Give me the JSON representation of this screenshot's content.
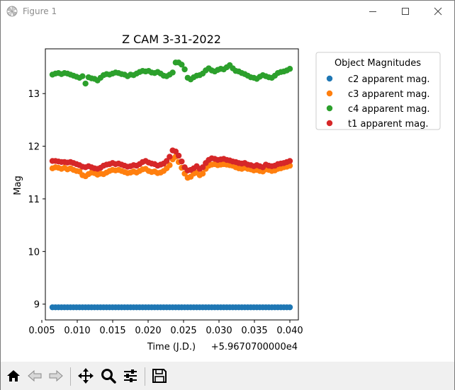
{
  "window": {
    "title": "Figure 1"
  },
  "chart_data": {
    "type": "scatter",
    "title": "Z CAM 3-31-2022",
    "xlabel": "Time (J.D.)",
    "ylabel": "Mag",
    "x_offset_label": "+5.9670700000e4",
    "xlim": [
      0.0055,
      0.0412
    ],
    "ylim": [
      8.7,
      13.85
    ],
    "x_ticks": [
      0.005,
      0.01,
      0.015,
      0.02,
      0.025,
      0.03,
      0.035,
      0.04
    ],
    "x_tick_labels": [
      "0.005",
      "0.010",
      "0.015",
      "0.020",
      "0.025",
      "0.030",
      "0.035",
      "0.040"
    ],
    "y_ticks": [
      9,
      10,
      11,
      12,
      13
    ],
    "y_tick_labels": [
      "9",
      "10",
      "11",
      "12",
      "13"
    ],
    "grid": false,
    "legend": {
      "title": "Object Magnitudes",
      "position": "outside-right-top"
    },
    "x_range": [
      0.0065,
      0.04
    ],
    "series": [
      {
        "name": "c2 apparent mag.",
        "color": "#1f77b4",
        "values": [
          8.94,
          8.94,
          8.94,
          8.94,
          8.94,
          8.94,
          8.94,
          8.94,
          8.94,
          8.94,
          8.94,
          8.94,
          8.94,
          8.94,
          8.94,
          8.94,
          8.94,
          8.94,
          8.94,
          8.94,
          8.94,
          8.94,
          8.94,
          8.94,
          8.94,
          8.94,
          8.94,
          8.94,
          8.94,
          8.94,
          8.94,
          8.94,
          8.94,
          8.94,
          8.94,
          8.94,
          8.94,
          8.94,
          8.94,
          8.94,
          8.94,
          8.94,
          8.94,
          8.94,
          8.94,
          8.94,
          8.94,
          8.94,
          8.94,
          8.94,
          8.94,
          8.94,
          8.94,
          8.94,
          8.94,
          8.94,
          8.94,
          8.94,
          8.94,
          8.94,
          8.94,
          8.94,
          8.94,
          8.94,
          8.94,
          8.94,
          8.94,
          8.94,
          8.94,
          8.94,
          8.94,
          8.94,
          8.94,
          8.94,
          8.94,
          8.94,
          8.94,
          8.94,
          8.94,
          8.94
        ]
      },
      {
        "name": "c3 apparent mag.",
        "color": "#ff7f0e",
        "values": [
          11.58,
          11.6,
          11.59,
          11.57,
          11.59,
          11.56,
          11.58,
          11.55,
          11.53,
          11.52,
          11.45,
          11.43,
          11.47,
          11.5,
          11.49,
          11.46,
          11.48,
          11.47,
          11.5,
          11.53,
          11.55,
          11.54,
          11.55,
          11.53,
          11.51,
          11.49,
          11.5,
          11.52,
          11.5,
          11.53,
          11.56,
          11.57,
          11.53,
          11.51,
          11.52,
          11.49,
          11.5,
          11.53,
          11.58,
          11.64,
          11.75,
          11.8,
          11.7,
          11.59,
          11.48,
          11.4,
          11.42,
          11.48,
          11.5,
          11.45,
          11.48,
          11.57,
          11.63,
          11.65,
          11.66,
          11.64,
          11.65,
          11.66,
          11.65,
          11.64,
          11.63,
          11.6,
          11.58,
          11.57,
          11.59,
          11.57,
          11.56,
          11.54,
          11.55,
          11.53,
          11.52,
          11.56,
          11.55,
          11.53,
          11.54,
          11.57,
          11.58,
          11.6,
          11.61,
          11.63
        ]
      },
      {
        "name": "c4 apparent mag.",
        "color": "#2ca02c",
        "values": [
          13.36,
          13.38,
          13.39,
          13.37,
          13.39,
          13.38,
          13.36,
          13.34,
          13.32,
          13.3,
          13.33,
          13.19,
          13.31,
          13.29,
          13.28,
          13.25,
          13.3,
          13.35,
          13.37,
          13.36,
          13.38,
          13.4,
          13.39,
          13.37,
          13.36,
          13.33,
          13.36,
          13.35,
          13.38,
          13.41,
          13.43,
          13.42,
          13.43,
          13.4,
          13.39,
          13.41,
          13.38,
          13.34,
          13.33,
          13.36,
          13.4,
          13.59,
          13.59,
          13.55,
          13.46,
          13.3,
          13.27,
          13.31,
          13.34,
          13.35,
          13.38,
          13.44,
          13.48,
          13.44,
          13.42,
          13.45,
          13.47,
          13.46,
          13.5,
          13.54,
          13.48,
          13.43,
          13.42,
          13.39,
          13.37,
          13.34,
          13.31,
          13.3,
          13.28,
          13.32,
          13.35,
          13.33,
          13.31,
          13.3,
          13.34,
          13.39,
          13.41,
          13.42,
          13.44,
          13.47
        ]
      },
      {
        "name": "t1 apparent mag.",
        "color": "#d62728",
        "values": [
          11.72,
          11.72,
          11.71,
          11.7,
          11.7,
          11.69,
          11.7,
          11.68,
          11.66,
          11.64,
          11.61,
          11.6,
          11.62,
          11.6,
          11.58,
          11.57,
          11.59,
          11.63,
          11.65,
          11.66,
          11.68,
          11.66,
          11.67,
          11.65,
          11.63,
          11.61,
          11.62,
          11.64,
          11.63,
          11.66,
          11.7,
          11.72,
          11.69,
          11.67,
          11.66,
          11.63,
          11.65,
          11.67,
          11.72,
          11.8,
          11.92,
          11.9,
          11.82,
          11.71,
          11.6,
          11.54,
          11.55,
          11.58,
          11.62,
          11.57,
          11.6,
          11.68,
          11.74,
          11.77,
          11.76,
          11.74,
          11.75,
          11.76,
          11.74,
          11.73,
          11.71,
          11.7,
          11.68,
          11.67,
          11.68,
          11.65,
          11.64,
          11.62,
          11.64,
          11.62,
          11.6,
          11.65,
          11.63,
          11.62,
          11.63,
          11.66,
          11.67,
          11.68,
          11.7,
          11.72
        ]
      }
    ]
  },
  "toolbar": {
    "buttons": [
      "home-icon",
      "back-icon",
      "forward-icon",
      "pan-icon",
      "zoom-icon",
      "configure-subplots-icon",
      "save-icon"
    ]
  }
}
